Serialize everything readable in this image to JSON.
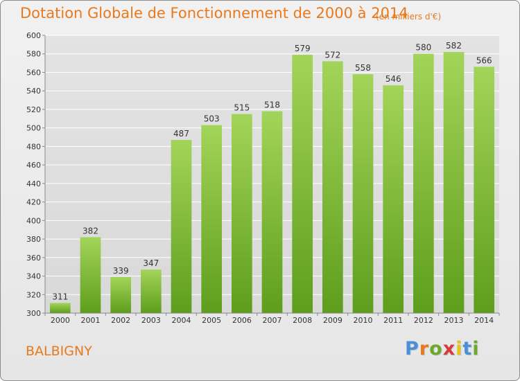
{
  "header": {
    "title": "Dotation Globale de Fonctionnement de 2000 à 2014",
    "unit_note": "(en milliers d'€)"
  },
  "footer": {
    "commune": "BALBIGNY",
    "logo_text": "Proxiti",
    "logo_colors": [
      "#4a90d9",
      "#e8791d",
      "#6aaa2a",
      "#d63b3b",
      "#e8c11d",
      "#4a90d9",
      "#6aaa2a"
    ]
  },
  "chart_data": {
    "type": "bar",
    "title": "Dotation Globale de Fonctionnement de 2000 à 2014",
    "subtitle": "(en milliers d'€)",
    "xlabel": "",
    "ylabel": "",
    "categories": [
      "2000",
      "2001",
      "2002",
      "2003",
      "2004",
      "2005",
      "2006",
      "2007",
      "2008",
      "2009",
      "2010",
      "2011",
      "2012",
      "2013",
      "2014"
    ],
    "values": [
      311,
      382,
      339,
      347,
      487,
      503,
      515,
      518,
      579,
      572,
      558,
      546,
      580,
      582,
      566
    ],
    "ylim": [
      300,
      600
    ],
    "yticks": [
      300,
      320,
      340,
      360,
      380,
      400,
      420,
      440,
      460,
      480,
      500,
      520,
      540,
      560,
      580,
      600
    ],
    "grid": true,
    "bar_color_top": "#a3d45a",
    "bar_color_bottom": "#5e9e1c",
    "grid_color": "#ffffff"
  }
}
